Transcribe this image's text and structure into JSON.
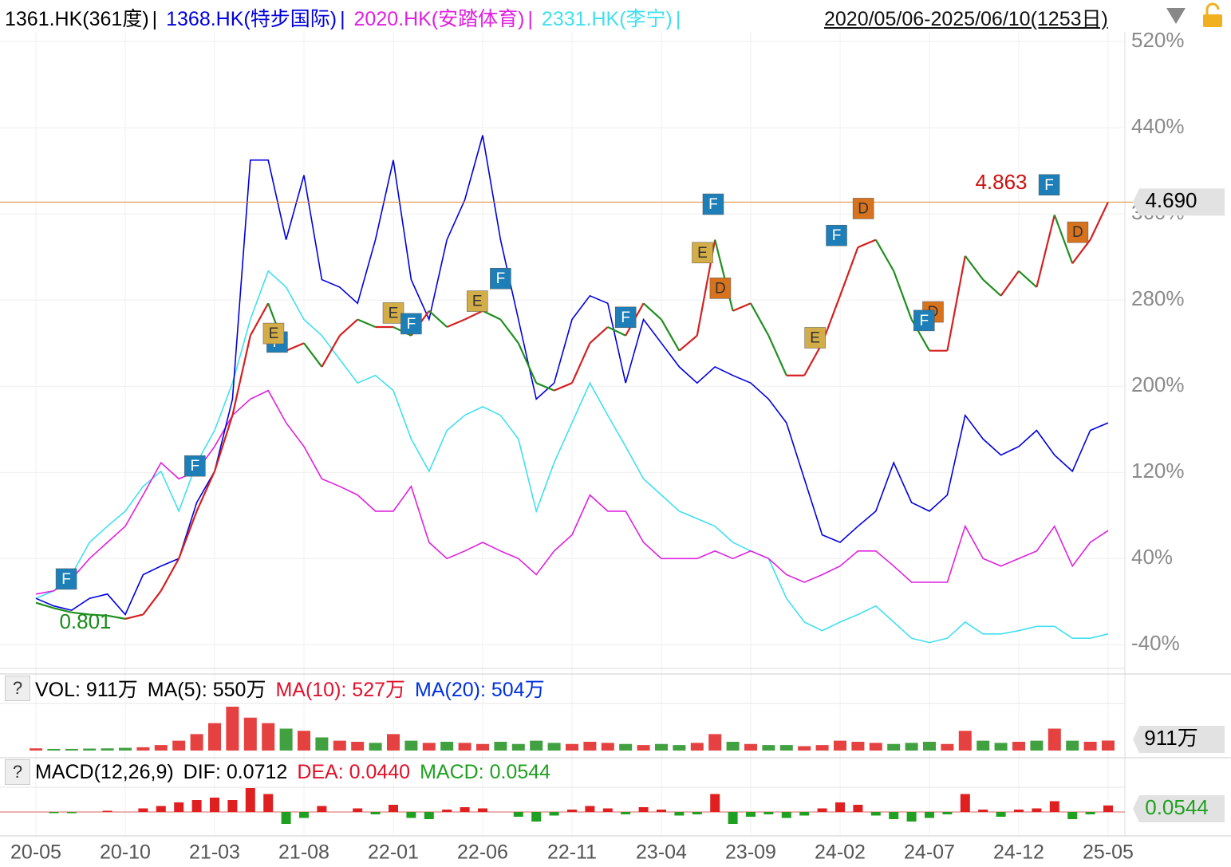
{
  "header": {
    "separator": "|",
    "range": "2020/05/06-2025/06/10(1253日)"
  },
  "chart_data": {
    "type": "line",
    "categories": [
      "20-05",
      null,
      null,
      null,
      null,
      "20-10",
      null,
      null,
      null,
      null,
      "21-03",
      null,
      null,
      null,
      null,
      "21-08",
      null,
      null,
      null,
      null,
      "22-01",
      null,
      null,
      null,
      null,
      "22-06",
      null,
      null,
      null,
      null,
      "22-11",
      null,
      null,
      null,
      null,
      "23-04",
      null,
      null,
      null,
      null,
      "23-09",
      null,
      null,
      null,
      null,
      "24-02",
      null,
      null,
      null,
      null,
      "24-07",
      null,
      null,
      null,
      null,
      "24-12",
      null,
      null,
      null,
      null,
      "25-05"
    ],
    "series": [
      {
        "name": "1361.HK(361度)",
        "color": "#d42020",
        "down_color": "#1f8f1f",
        "values": [
          -1,
          -6,
          -10,
          -12,
          -13,
          -16,
          -12,
          10,
          40,
          84,
          121,
          173,
          247,
          277,
          233,
          240,
          218,
          247,
          262,
          255,
          255,
          247,
          270,
          255,
          262,
          270,
          262,
          240,
          203,
          196,
          203,
          240,
          255,
          247,
          277,
          262,
          233,
          247,
          336,
          270,
          277,
          247,
          210,
          210,
          240,
          284,
          329,
          336,
          307,
          262,
          233,
          233,
          321,
          299,
          284,
          307,
          292,
          359,
          314,
          336,
          371
        ]
      },
      {
        "name": "1368.HK(特步国际)",
        "color": "#0000e0",
        "values": [
          3,
          -4,
          -8,
          3,
          7,
          -12,
          25,
          33,
          40,
          92,
          121,
          188,
          410,
          410,
          336,
          396,
          299,
          292,
          277,
          336,
          410,
          299,
          262,
          336,
          373,
          433,
          336,
          262,
          188,
          203,
          262,
          284,
          277,
          203,
          262,
          240,
          218,
          203,
          218,
          210,
          203,
          188,
          166,
          114,
          62,
          55,
          70,
          84,
          129,
          92,
          84,
          99,
          173,
          151,
          136,
          144,
          159,
          136,
          121,
          159,
          166
        ]
      },
      {
        "name": "2020.HK(安踏体育)",
        "color": "#e020e0",
        "values": [
          7,
          10,
          21,
          40,
          55,
          70,
          99,
          129,
          114,
          121,
          144,
          173,
          188,
          196,
          166,
          144,
          114,
          107,
          99,
          84,
          84,
          107,
          55,
          40,
          47,
          55,
          47,
          40,
          25,
          47,
          62,
          99,
          84,
          84,
          55,
          40,
          40,
          40,
          47,
          40,
          47,
          40,
          25,
          18,
          25,
          33,
          47,
          47,
          33,
          18,
          18,
          18,
          70,
          40,
          33,
          40,
          47,
          70,
          33,
          55,
          66
        ]
      },
      {
        "name": "2331.HK(李宁)",
        "color": "#40e0f0",
        "values": [
          3,
          10,
          25,
          55,
          70,
          84,
          107,
          121,
          84,
          129,
          159,
          203,
          262,
          307,
          292,
          262,
          247,
          225,
          203,
          210,
          196,
          151,
          121,
          159,
          173,
          181,
          173,
          151,
          84,
          129,
          166,
          203,
          173,
          144,
          114,
          99,
          84,
          77,
          70,
          55,
          47,
          40,
          3,
          -19,
          -27,
          -19,
          -12,
          -4,
          -19,
          -34,
          -38,
          -34,
          -19,
          -30,
          -30,
          -27,
          -23,
          -23,
          -34,
          -34,
          -30
        ]
      }
    ],
    "ylim": [
      -62,
      529
    ],
    "yticks": [
      {
        "value": -40,
        "label": "-40%"
      },
      {
        "value": 40,
        "label": "40%"
      },
      {
        "value": 120,
        "label": "120%"
      },
      {
        "value": 200,
        "label": "200%"
      },
      {
        "value": 280,
        "label": "280%"
      },
      {
        "value": 360,
        "label": "360%"
      },
      {
        "value": 440,
        "label": "440%"
      },
      {
        "value": 520,
        "label": "520%"
      }
    ],
    "grid": true,
    "last_price": {
      "value": 4.69,
      "label": "4.690"
    },
    "high": 4.863,
    "low": 0.801,
    "marker_colors": {
      "F": "#1e7fb8",
      "E": "#d3ad48",
      "D": "#d8721c"
    },
    "markers": [
      {
        "label": "F",
        "x": 1.7,
        "y": 21
      },
      {
        "label": "F",
        "x": 8.9,
        "y": 126
      },
      {
        "label": "F",
        "x": 13.5,
        "y": 241
      },
      {
        "label": "E",
        "x": 13.3,
        "y": 249
      },
      {
        "label": "E",
        "x": 20,
        "y": 268
      },
      {
        "label": "F",
        "x": 21,
        "y": 258
      },
      {
        "label": "E",
        "x": 24.7,
        "y": 279
      },
      {
        "label": "F",
        "x": 26,
        "y": 300
      },
      {
        "label": "F",
        "x": 33,
        "y": 264
      },
      {
        "label": "F",
        "x": 37.9,
        "y": 369
      },
      {
        "label": "E",
        "x": 37.3,
        "y": 324
      },
      {
        "label": "D",
        "x": 38.3,
        "y": 291
      },
      {
        "label": "E",
        "x": 43.6,
        "y": 245
      },
      {
        "label": "F",
        "x": 44.8,
        "y": 340
      },
      {
        "label": "D",
        "x": 46.3,
        "y": 365
      },
      {
        "label": "D",
        "x": 50.2,
        "y": 269
      },
      {
        "label": "F",
        "x": 49.7,
        "y": 261
      },
      {
        "label": "F",
        "x": 56.7,
        "y": 387
      },
      {
        "label": "D",
        "x": 58.3,
        "y": 343
      }
    ]
  },
  "volume": {
    "help": "?",
    "labels": [
      "VOL: 911万",
      "MA(5): 550万",
      "MA(10): 527万",
      "MA(20): 504万"
    ],
    "label_colors": [
      "#000000",
      "#000000",
      "#e0102a",
      "#0030e0"
    ],
    "values": [
      200,
      150,
      150,
      180,
      200,
      250,
      300,
      500,
      900,
      1500,
      2500,
      4000,
      3000,
      2500,
      2000,
      1800,
      1200,
      900,
      800,
      700,
      1500,
      900,
      700,
      800,
      700,
      600,
      800,
      600,
      900,
      700,
      600,
      800,
      700,
      600,
      500,
      600,
      500,
      700,
      1500,
      800,
      600,
      500,
      500,
      400,
      500,
      900,
      800,
      700,
      600,
      700,
      800,
      600,
      1800,
      900,
      700,
      800,
      900,
      2000,
      900,
      800,
      911
    ],
    "last_label": "911万"
  },
  "macd": {
    "help": "?",
    "labels": [
      "MACD(12,26,9)",
      "DIF: 0.0712",
      "DEA: 0.0440",
      "MACD: 0.0544"
    ],
    "label_colors": [
      "#000000",
      "#000000",
      "#e0102a",
      "#20a020"
    ],
    "values": [
      0,
      -0.01,
      -0.01,
      0,
      0.01,
      0,
      0.03,
      0.05,
      0.08,
      0.1,
      0.12,
      0.1,
      0.2,
      0.15,
      -0.1,
      -0.05,
      0.05,
      0,
      0.03,
      -0.02,
      0.06,
      -0.05,
      -0.06,
      0.02,
      0.04,
      0.03,
      0,
      -0.04,
      -0.08,
      -0.03,
      0.02,
      0.05,
      0.03,
      -0.02,
      0.04,
      0.02,
      -0.03,
      -0.02,
      0.15,
      -0.1,
      -0.04,
      -0.02,
      -0.05,
      -0.03,
      0.03,
      0.08,
      0.06,
      -0.03,
      -0.06,
      -0.08,
      -0.05,
      -0.02,
      0.15,
      0.02,
      -0.04,
      0.02,
      0.03,
      0.09,
      -0.06,
      -0.02,
      0.0544
    ],
    "last_label": "0.0544"
  }
}
